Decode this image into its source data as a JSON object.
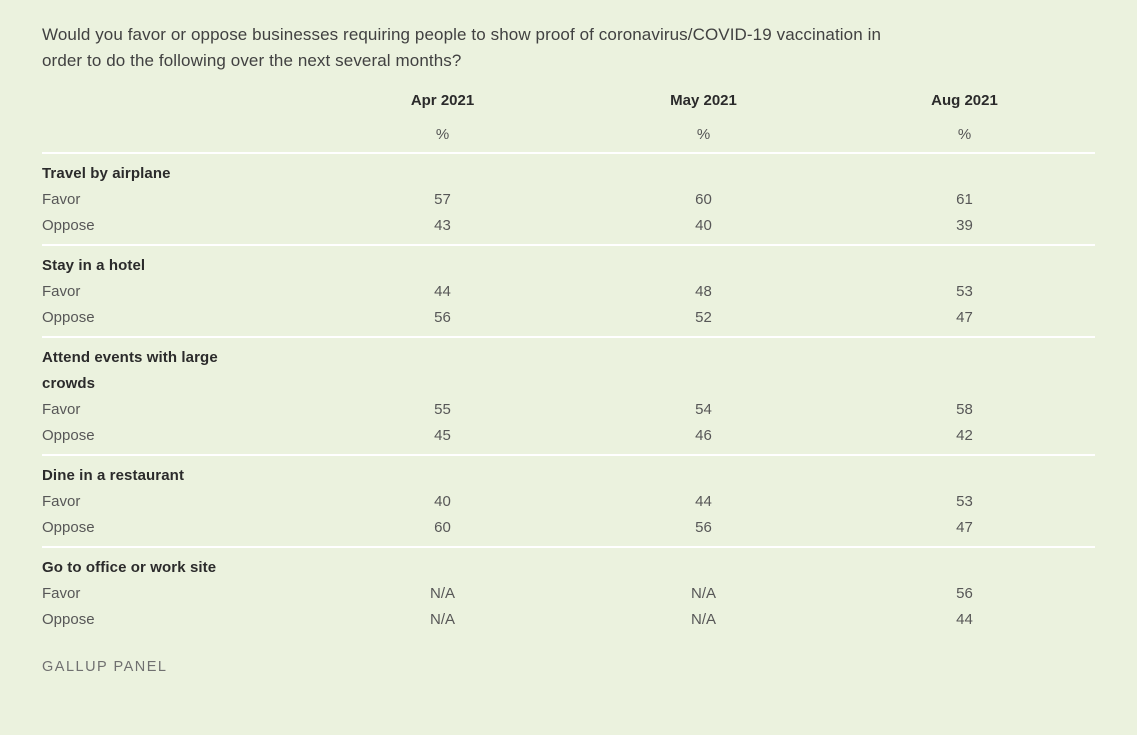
{
  "title": "Would you favor or oppose businesses requiring people to show proof of coronavirus/COVID-19 vaccination in order to do the following over the next several months?",
  "table": {
    "columns": [
      "Apr 2021",
      "May 2021",
      "Aug 2021"
    ],
    "unit": "%",
    "groups": [
      {
        "category": "Travel by airplane",
        "rows": [
          {
            "label": "Favor",
            "values": [
              "57",
              "60",
              "61"
            ]
          },
          {
            "label": "Oppose",
            "values": [
              "43",
              "40",
              "39"
            ]
          }
        ]
      },
      {
        "category": "Stay in a hotel",
        "rows": [
          {
            "label": "Favor",
            "values": [
              "44",
              "48",
              "53"
            ]
          },
          {
            "label": "Oppose",
            "values": [
              "56",
              "52",
              "47"
            ]
          }
        ]
      },
      {
        "category": "Attend events with large crowds",
        "rows": [
          {
            "label": "Favor",
            "values": [
              "55",
              "54",
              "58"
            ]
          },
          {
            "label": "Oppose",
            "values": [
              "45",
              "46",
              "42"
            ]
          }
        ]
      },
      {
        "category": "Dine in a restaurant",
        "rows": [
          {
            "label": "Favor",
            "values": [
              "40",
              "44",
              "53"
            ]
          },
          {
            "label": "Oppose",
            "values": [
              "60",
              "56",
              "47"
            ]
          }
        ]
      },
      {
        "category": "Go to office or work site",
        "rows": [
          {
            "label": "Favor",
            "values": [
              "N/A",
              "N/A",
              "56"
            ]
          },
          {
            "label": "Oppose",
            "values": [
              "N/A",
              "N/A",
              "44"
            ]
          }
        ]
      }
    ],
    "source": "GALLUP PANEL"
  },
  "colors": {
    "background": "#ebf2de",
    "divider": "#ffffff",
    "heading_text": "#2b2b2b",
    "body_text": "#575757",
    "source_text": "#707070"
  },
  "chart_data": {
    "type": "table",
    "title": "Would you favor or oppose businesses requiring people to show proof of coronavirus/COVID-19 vaccination in order to do the following over the next several months?",
    "columns": [
      "Apr 2021",
      "May 2021",
      "Aug 2021"
    ],
    "unit": "%",
    "rows": [
      {
        "category": "Travel by airplane",
        "measure": "Favor",
        "values": [
          57,
          60,
          61
        ]
      },
      {
        "category": "Travel by airplane",
        "measure": "Oppose",
        "values": [
          43,
          40,
          39
        ]
      },
      {
        "category": "Stay in a hotel",
        "measure": "Favor",
        "values": [
          44,
          48,
          53
        ]
      },
      {
        "category": "Stay in a hotel",
        "measure": "Oppose",
        "values": [
          56,
          52,
          47
        ]
      },
      {
        "category": "Attend events with large crowds",
        "measure": "Favor",
        "values": [
          55,
          54,
          58
        ]
      },
      {
        "category": "Attend events with large crowds",
        "measure": "Oppose",
        "values": [
          45,
          46,
          42
        ]
      },
      {
        "category": "Dine in a restaurant",
        "measure": "Favor",
        "values": [
          40,
          44,
          53
        ]
      },
      {
        "category": "Dine in a restaurant",
        "measure": "Oppose",
        "values": [
          60,
          56,
          47
        ]
      },
      {
        "category": "Go to office or work site",
        "measure": "Favor",
        "values": [
          null,
          null,
          56
        ]
      },
      {
        "category": "Go to office or work site",
        "measure": "Oppose",
        "values": [
          null,
          null,
          44
        ]
      }
    ],
    "na_display": "N/A",
    "source": "GALLUP PANEL",
    "layout": {
      "grid": "white horizontal dividers between groups",
      "legend": "none"
    }
  }
}
